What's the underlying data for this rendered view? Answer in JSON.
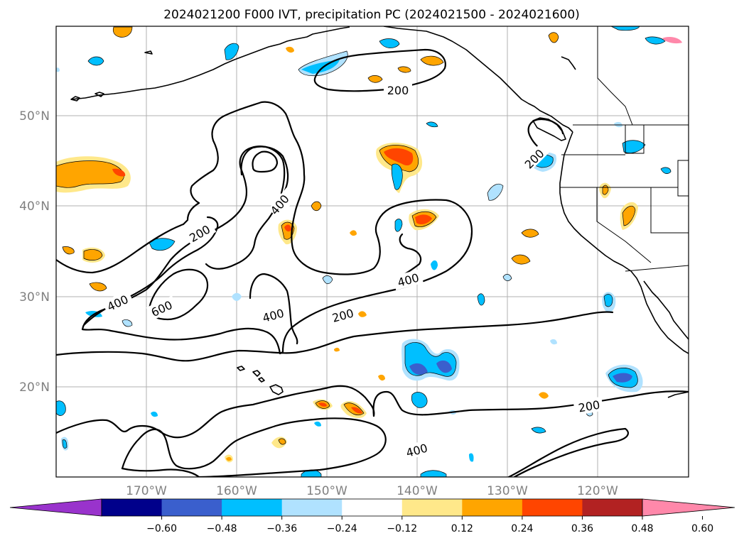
{
  "title": "2024021200 F000 IVT, precipitation PC (2024021500 - 2024021600)",
  "lat_labels": [
    "50°N",
    "40°N",
    "30°N",
    "20°N"
  ],
  "lon_labels": [
    "170°W",
    "160°W",
    "150°W",
    "140°W",
    "130°W",
    "120°W"
  ],
  "contour_labels": [
    "200",
    "200",
    "200",
    "400",
    "400",
    "400",
    "600",
    "200",
    "400",
    "200",
    "400",
    "200"
  ],
  "colorbar": {
    "ticks": [
      "−0.60",
      "−0.48",
      "−0.36",
      "−0.24",
      "−0.12",
      "0.12",
      "0.24",
      "0.36",
      "0.48",
      "0.60"
    ],
    "colors": [
      "#9933cc",
      "#00008b",
      "#3a5fcd",
      "#00bfff",
      "#b0e2ff",
      "#ffffff",
      "#ffe88a",
      "#ffa500",
      "#ff4500",
      "#b22222",
      "#ff88aa"
    ]
  },
  "map_data": {
    "lon_range": [
      -180,
      -110
    ],
    "lat_range": [
      10,
      60
    ],
    "ivt_contour_levels": [
      200,
      400,
      600
    ],
    "precip_pc_levels": [
      -0.6,
      -0.48,
      -0.36,
      -0.24,
      -0.12,
      0.12,
      0.24,
      0.36,
      0.48,
      0.6
    ]
  }
}
